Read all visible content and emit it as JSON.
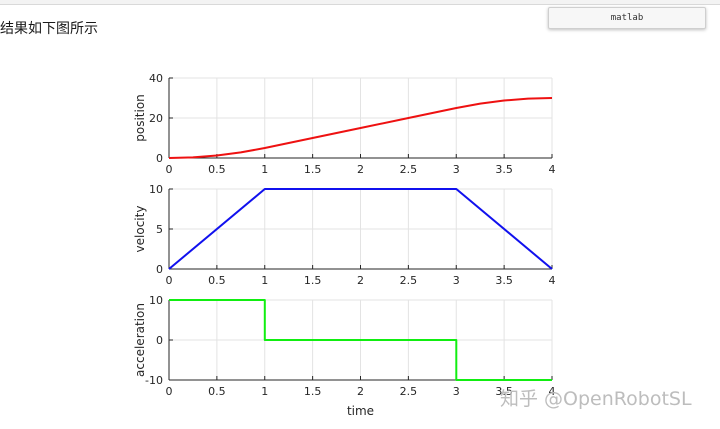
{
  "caption": "结果如下图所示",
  "code_block": {
    "language_label": "matlab"
  },
  "watermark": "知乎 @OpenRobotSL",
  "colors": {
    "position": "#ee1111",
    "velocity": "#1111ee",
    "acceleration": "#11ee11",
    "grid": "#e3e3e3",
    "axis": "#262626"
  },
  "chart_data": [
    {
      "type": "line",
      "xlabel": "",
      "ylabel": "position",
      "xlim": [
        0,
        4
      ],
      "ylim": [
        0,
        40
      ],
      "xticks": [
        "0",
        "0.5",
        "1",
        "1.5",
        "2",
        "2.5",
        "3",
        "3.5",
        "4"
      ],
      "yticks": [
        "0",
        "20",
        "40"
      ],
      "series": [
        {
          "color": "red",
          "x": [
            0,
            0.25,
            0.5,
            0.75,
            1,
            1.5,
            2,
            2.5,
            3,
            3.25,
            3.5,
            3.75,
            4
          ],
          "y": [
            0,
            0.31,
            1.25,
            2.81,
            5,
            10,
            15,
            20,
            25,
            27.19,
            28.75,
            29.69,
            30
          ]
        }
      ],
      "grid": true
    },
    {
      "type": "line",
      "xlabel": "",
      "ylabel": "velocity",
      "xlim": [
        0,
        4
      ],
      "ylim": [
        0,
        10
      ],
      "xticks": [
        "0",
        "0.5",
        "1",
        "1.5",
        "2",
        "2.5",
        "3",
        "3.5",
        "4"
      ],
      "yticks": [
        "0",
        "5",
        "10"
      ],
      "series": [
        {
          "color": "blue",
          "x": [
            0,
            1,
            3,
            4
          ],
          "y": [
            0,
            10,
            10,
            0
          ]
        }
      ],
      "grid": true
    },
    {
      "type": "line",
      "xlabel": "time",
      "ylabel": "acceleration",
      "xlim": [
        0,
        4
      ],
      "ylim": [
        -10,
        10
      ],
      "xticks": [
        "0",
        "0.5",
        "1",
        "1.5",
        "2",
        "2.5",
        "3",
        "3.5",
        "4"
      ],
      "yticks": [
        "-10",
        "0",
        "10"
      ],
      "series": [
        {
          "color": "green",
          "x": [
            0,
            1,
            1,
            3,
            3,
            4
          ],
          "y": [
            10,
            10,
            0,
            0,
            -10,
            -10
          ]
        }
      ],
      "grid": true
    }
  ]
}
